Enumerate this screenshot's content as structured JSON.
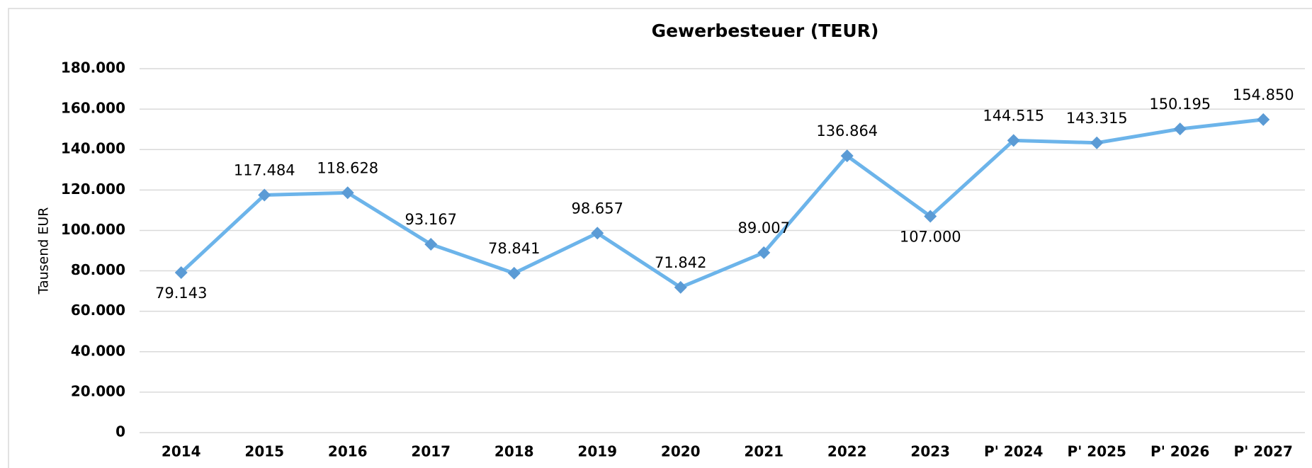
{
  "chart_data": {
    "type": "line",
    "title": "Gewerbesteuer (TEUR)",
    "y_label": "Tausend EUR",
    "categories": [
      "2014",
      "2015",
      "2016",
      "2017",
      "2018",
      "2019",
      "2020",
      "2021",
      "2022",
      "2023",
      "P' 2024",
      "P' 2025",
      "P' 2026",
      "P' 2027"
    ],
    "series": [
      {
        "name": "Gewerbesteuer",
        "color": "#6cb4ea",
        "marker_color": "#5b9bd5",
        "values": [
          79143,
          117484,
          118628,
          93167,
          78841,
          98657,
          71842,
          89007,
          136864,
          107000,
          144515,
          143315,
          150195,
          154850
        ],
        "value_labels": [
          "79.143",
          "117.484",
          "118.628",
          "93.167",
          "78.841",
          "98.657",
          "71.842",
          "89.007",
          "136.864",
          "107.000",
          "144.515",
          "143.315",
          "150.195",
          "154.850"
        ]
      }
    ],
    "ylim": [
      0,
      180000
    ],
    "yticks": [
      0,
      {
        "value": 20000,
        "label": "20.000"
      },
      {
        "value": 40000,
        "label": "40.000"
      },
      {
        "value": 60000,
        "label": "60.000"
      },
      {
        "value": 80000,
        "label": "80.000"
      },
      {
        "value": 100000,
        "label": "100.000"
      },
      {
        "value": 120000,
        "label": "120.000"
      },
      {
        "value": 140000,
        "label": "140.000"
      },
      {
        "value": 160000,
        "label": "160.000"
      },
      {
        "value": 180000,
        "label": "180.000"
      }
    ],
    "grid": true
  }
}
